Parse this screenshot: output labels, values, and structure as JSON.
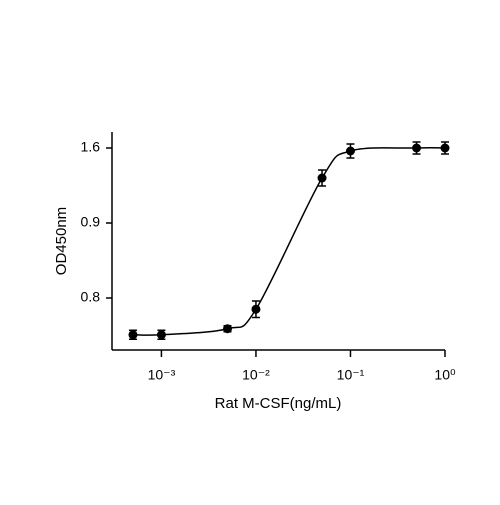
{
  "chart_data": {
    "type": "scatter",
    "xlabel": "Rat M-CSF(ng/mL)",
    "ylabel": "OD450nm",
    "x": [
      0.0005,
      0.001,
      0.005,
      0.01,
      0.05,
      0.1,
      0.5,
      1
    ],
    "series": [
      {
        "color": "#000000",
        "values": [
          0.751,
          0.751,
          0.759,
          0.785,
          1.32,
          1.572,
          1.6,
          1.6
        ],
        "errors": [
          0.006,
          0.006,
          0.004,
          0.011,
          0.075,
          0.065,
          0.056,
          0.056
        ]
      }
    ],
    "xscale": "log",
    "xlim": [
      0.0003,
      1
    ],
    "xticks": [
      {
        "value": 0.001,
        "label": "10⁻³"
      },
      {
        "value": 0.01,
        "label": "10⁻²"
      },
      {
        "value": 0.1,
        "label": "10⁻¹"
      },
      {
        "value": 1,
        "label": "10⁰"
      }
    ],
    "ylim": [
      0.731,
      1.749
    ],
    "yticks": [
      0.8,
      0.9,
      1.6
    ]
  }
}
